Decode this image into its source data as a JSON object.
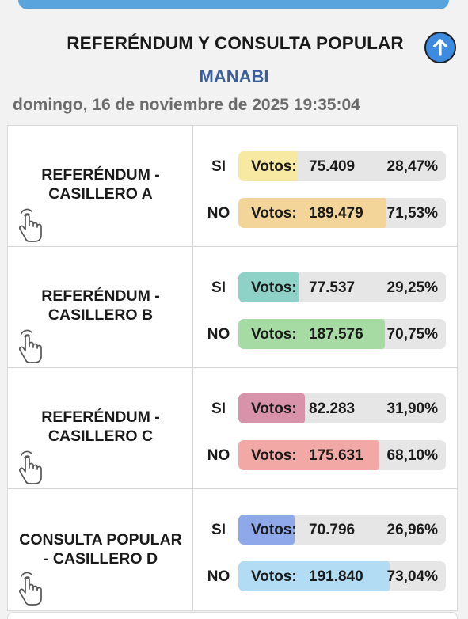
{
  "header": {
    "title": "REFERÉNDUM Y CONSULTA POPULAR",
    "region": "MANABI",
    "timestamp": "domingo, 16 de noviembre de 2025 19:35:04",
    "scroll_up_icon": "arrow-up-circle-icon"
  },
  "votes_label": "Votos:",
  "cards": [
    {
      "name": "REFERÉNDUM -\nCASILLERO A",
      "rows": [
        {
          "label": "SI",
          "votes": "75.409",
          "percent": "28,47%",
          "fraction": 0.2847,
          "color": "#f7e9a2"
        },
        {
          "label": "NO",
          "votes": "189.479",
          "percent": "71,53%",
          "fraction": 0.7153,
          "color": "#f3d59a"
        }
      ]
    },
    {
      "name": "REFERÉNDUM -\nCASILLERO B",
      "rows": [
        {
          "label": "SI",
          "votes": "77.537",
          "percent": "29,25%",
          "fraction": 0.2925,
          "color": "#8ed1c7"
        },
        {
          "label": "NO",
          "votes": "187.576",
          "percent": "70,75%",
          "fraction": 0.7075,
          "color": "#a6dca4"
        }
      ]
    },
    {
      "name": "REFERÉNDUM -\nCASILLERO C",
      "rows": [
        {
          "label": "SI",
          "votes": "82.283",
          "percent": "31,90%",
          "fraction": 0.319,
          "color": "#d893ab"
        },
        {
          "label": "NO",
          "votes": "175.631",
          "percent": "68,10%",
          "fraction": 0.681,
          "color": "#f2a9a5"
        }
      ]
    },
    {
      "name": "CONSULTA POPULAR\n- CASILLERO D",
      "rows": [
        {
          "label": "SI",
          "votes": "70.796",
          "percent": "26,96%",
          "fraction": 0.2696,
          "color": "#8ea8ea"
        },
        {
          "label": "NO",
          "votes": "191.840",
          "percent": "73,04%",
          "fraction": 0.7304,
          "color": "#b2dcf3"
        }
      ]
    }
  ],
  "card_icon": "hand-pointer-icon"
}
